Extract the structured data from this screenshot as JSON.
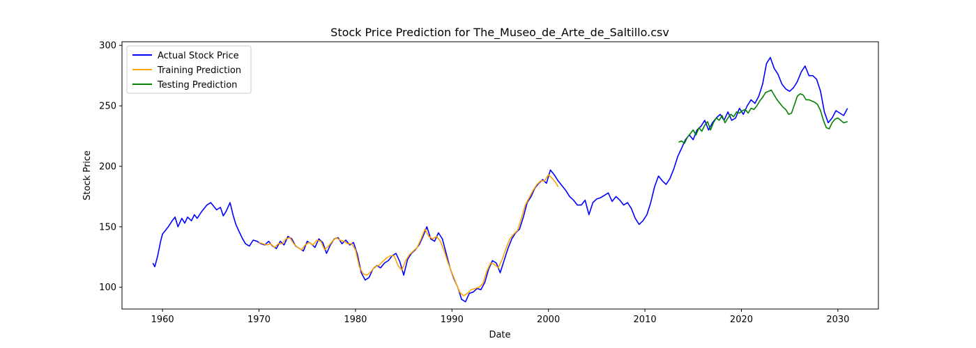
{
  "chart_data": {
    "type": "line",
    "title": "Stock Price Prediction for The_Museo_de_Arte_de_Saltillo.csv",
    "xlabel": "Date",
    "ylabel": "Stock Price",
    "xlim": [
      1955.8,
      2034.2
    ],
    "ylim": [
      82,
      303
    ],
    "x_ticks": [
      1960,
      1970,
      1980,
      1990,
      2000,
      2010,
      2020,
      2030
    ],
    "y_ticks": [
      100,
      150,
      200,
      250,
      300
    ],
    "grid": false,
    "legend_position": "top-left",
    "series": [
      {
        "name": "Actual Stock Price",
        "color": "#0000ff",
        "x": [
          1959.0,
          1959.2,
          1959.5,
          1959.8,
          1960.0,
          1960.3,
          1960.6,
          1961.0,
          1961.3,
          1961.6,
          1962.0,
          1962.3,
          1962.6,
          1963.0,
          1963.3,
          1963.6,
          1964.0,
          1964.3,
          1964.6,
          1965.0,
          1965.3,
          1965.6,
          1966.0,
          1966.3,
          1966.6,
          1967.0,
          1967.3,
          1967.6,
          1968.0,
          1968.3,
          1968.6,
          1969.0,
          1969.4,
          1969.8,
          1970.2,
          1970.6,
          1971.0,
          1971.4,
          1971.8,
          1972.2,
          1972.6,
          1973.0,
          1973.4,
          1973.8,
          1974.2,
          1974.6,
          1975.0,
          1975.4,
          1975.8,
          1976.2,
          1976.6,
          1977.0,
          1977.4,
          1977.8,
          1978.2,
          1978.6,
          1979.0,
          1979.4,
          1979.8,
          1980.2,
          1980.6,
          1981.0,
          1981.4,
          1981.8,
          1982.2,
          1982.6,
          1983.0,
          1983.4,
          1983.8,
          1984.2,
          1984.6,
          1985.0,
          1985.4,
          1985.8,
          1986.2,
          1986.6,
          1987.0,
          1987.4,
          1987.8,
          1988.2,
          1988.6,
          1989.0,
          1989.4,
          1989.8,
          1990.2,
          1990.6,
          1991.0,
          1991.4,
          1991.8,
          1992.2,
          1992.6,
          1993.0,
          1993.4,
          1993.8,
          1994.2,
          1994.6,
          1995.0,
          1995.4,
          1995.8,
          1996.2,
          1996.6,
          1997.0,
          1997.4,
          1997.8,
          1998.2,
          1998.6,
          1999.0,
          1999.4,
          1999.8,
          2000.2,
          2000.6,
          2001.0,
          2001.4,
          2001.8,
          2002.2,
          2002.6,
          2003.0,
          2003.4,
          2003.8,
          2004.2,
          2004.6,
          2005.0,
          2005.4,
          2005.8,
          2006.2,
          2006.6,
          2007.0,
          2007.4,
          2007.8,
          2008.2,
          2008.6,
          2009.0,
          2009.4,
          2009.8,
          2010.2,
          2010.6,
          2011.0,
          2011.4,
          2011.8,
          2012.2,
          2012.6,
          2013.0,
          2013.4,
          2013.8,
          2014.2,
          2014.6,
          2015.0,
          2015.4,
          2015.8,
          2016.2,
          2016.6,
          2017.0,
          2017.4,
          2017.8,
          2018.2,
          2018.6,
          2019.0,
          2019.4,
          2019.8,
          2020.2,
          2020.6,
          2021.0,
          2021.4,
          2021.8,
          2022.2,
          2022.6,
          2023.0,
          2023.4,
          2023.8,
          2024.2,
          2024.6,
          2025.0,
          2025.4,
          2025.8,
          2026.2,
          2026.6,
          2027.0,
          2027.4,
          2027.8,
          2028.2,
          2028.6,
          2029.0,
          2029.4,
          2029.8,
          2030.2,
          2030.6,
          2031.0
        ],
        "y": [
          120,
          117,
          126,
          138,
          144,
          147,
          150,
          155,
          158,
          150,
          157,
          153,
          158,
          155,
          160,
          157,
          162,
          165,
          168,
          170,
          167,
          164,
          166,
          159,
          163,
          170,
          160,
          152,
          145,
          140,
          136,
          134,
          139,
          138,
          136,
          135,
          138,
          134,
          132,
          138,
          135,
          142,
          140,
          134,
          132,
          130,
          138,
          136,
          133,
          140,
          137,
          128,
          135,
          140,
          141,
          136,
          139,
          135,
          137,
          127,
          112,
          106,
          108,
          115,
          118,
          116,
          120,
          122,
          126,
          128,
          121,
          110,
          123,
          128,
          131,
          135,
          142,
          150,
          140,
          138,
          145,
          140,
          128,
          116,
          107,
          100,
          90,
          88,
          95,
          96,
          99,
          98,
          104,
          115,
          122,
          120,
          112,
          122,
          132,
          140,
          145,
          148,
          158,
          170,
          175,
          182,
          186,
          189,
          186,
          197,
          193,
          188,
          184,
          180,
          175,
          172,
          168,
          168,
          172,
          160,
          170,
          173,
          174,
          176,
          178,
          171,
          175,
          172,
          168,
          170,
          165,
          157,
          152,
          155,
          160,
          170,
          183,
          192,
          188,
          185,
          190,
          198,
          208,
          215,
          222,
          226,
          222,
          230,
          233,
          238,
          230,
          236,
          240,
          243,
          238,
          245,
          238,
          240,
          248,
          243,
          250,
          255,
          252,
          258,
          268,
          285,
          290,
          281,
          276,
          268,
          264,
          262,
          265,
          270,
          278,
          283,
          275,
          275,
          272,
          262,
          245,
          236,
          240,
          246,
          244,
          242,
          248
        ]
      },
      {
        "name": "Training Prediction",
        "color": "#ffa500",
        "x": [
          1970.0,
          1970.4,
          1970.8,
          1971.2,
          1971.6,
          1972.0,
          1972.4,
          1972.8,
          1973.2,
          1973.6,
          1974.0,
          1974.4,
          1974.8,
          1975.2,
          1975.6,
          1976.0,
          1976.4,
          1976.8,
          1977.2,
          1977.6,
          1978.0,
          1978.4,
          1978.8,
          1979.2,
          1979.6,
          1980.0,
          1980.4,
          1980.8,
          1981.2,
          1981.6,
          1982.0,
          1982.4,
          1982.8,
          1983.2,
          1983.6,
          1984.0,
          1984.4,
          1984.8,
          1985.2,
          1985.6,
          1986.0,
          1986.4,
          1986.8,
          1987.2,
          1987.6,
          1988.0,
          1988.4,
          1988.8,
          1989.2,
          1989.6,
          1990.0,
          1990.4,
          1990.8,
          1991.2,
          1991.6,
          1992.0,
          1992.4,
          1992.8,
          1993.2,
          1993.6,
          1994.0,
          1994.4,
          1994.8,
          1995.2,
          1995.6,
          1996.0,
          1996.4,
          1996.8,
          1997.2,
          1997.6,
          1998.0,
          1998.4,
          1998.8,
          1999.2,
          1999.6,
          2000.0,
          2000.4,
          2000.8,
          2001.0
        ],
        "y": [
          137,
          136,
          135,
          136,
          133,
          136,
          136,
          140,
          141,
          136,
          133,
          131,
          135,
          137,
          135,
          139,
          138,
          131,
          134,
          138,
          141,
          139,
          138,
          136,
          136,
          131,
          117,
          111,
          110,
          113,
          117,
          118,
          121,
          124,
          126,
          126,
          118,
          114,
          122,
          127,
          130,
          133,
          140,
          148,
          142,
          140,
          142,
          138,
          130,
          120,
          112,
          104,
          96,
          93,
          95,
          98,
          99,
          100,
          103,
          113,
          120,
          119,
          116,
          123,
          132,
          140,
          144,
          147,
          157,
          168,
          174,
          180,
          185,
          188,
          188,
          193,
          190,
          186,
          183
        ]
      },
      {
        "name": "Testing Prediction",
        "color": "#008000",
        "x": [
          2013.5,
          2013.8,
          2014.1,
          2014.4,
          2014.7,
          2015.0,
          2015.3,
          2015.6,
          2015.9,
          2016.2,
          2016.5,
          2016.8,
          2017.1,
          2017.4,
          2017.7,
          2018.0,
          2018.3,
          2018.6,
          2018.9,
          2019.2,
          2019.5,
          2019.8,
          2020.1,
          2020.4,
          2020.7,
          2021.0,
          2021.3,
          2021.6,
          2021.9,
          2022.2,
          2022.5,
          2022.8,
          2023.1,
          2023.4,
          2023.7,
          2024.0,
          2024.3,
          2024.6,
          2024.9,
          2025.2,
          2025.5,
          2025.8,
          2026.1,
          2026.4,
          2026.7,
          2027.0,
          2027.3,
          2027.6,
          2027.9,
          2028.2,
          2028.5,
          2028.8,
          2029.1,
          2029.4,
          2029.7,
          2030.0,
          2030.3,
          2030.6,
          2031.0
        ],
        "y": [
          220,
          221,
          219,
          224,
          227,
          230,
          226,
          232,
          229,
          234,
          237,
          230,
          236,
          240,
          238,
          242,
          236,
          240,
          243,
          241,
          245,
          244,
          246,
          247,
          244,
          248,
          247,
          250,
          254,
          257,
          261,
          262,
          263,
          259,
          255,
          252,
          249,
          247,
          243,
          244,
          251,
          258,
          260,
          259,
          255,
          255,
          254,
          253,
          251,
          246,
          238,
          232,
          231,
          236,
          239,
          240,
          238,
          236,
          237
        ]
      }
    ]
  }
}
